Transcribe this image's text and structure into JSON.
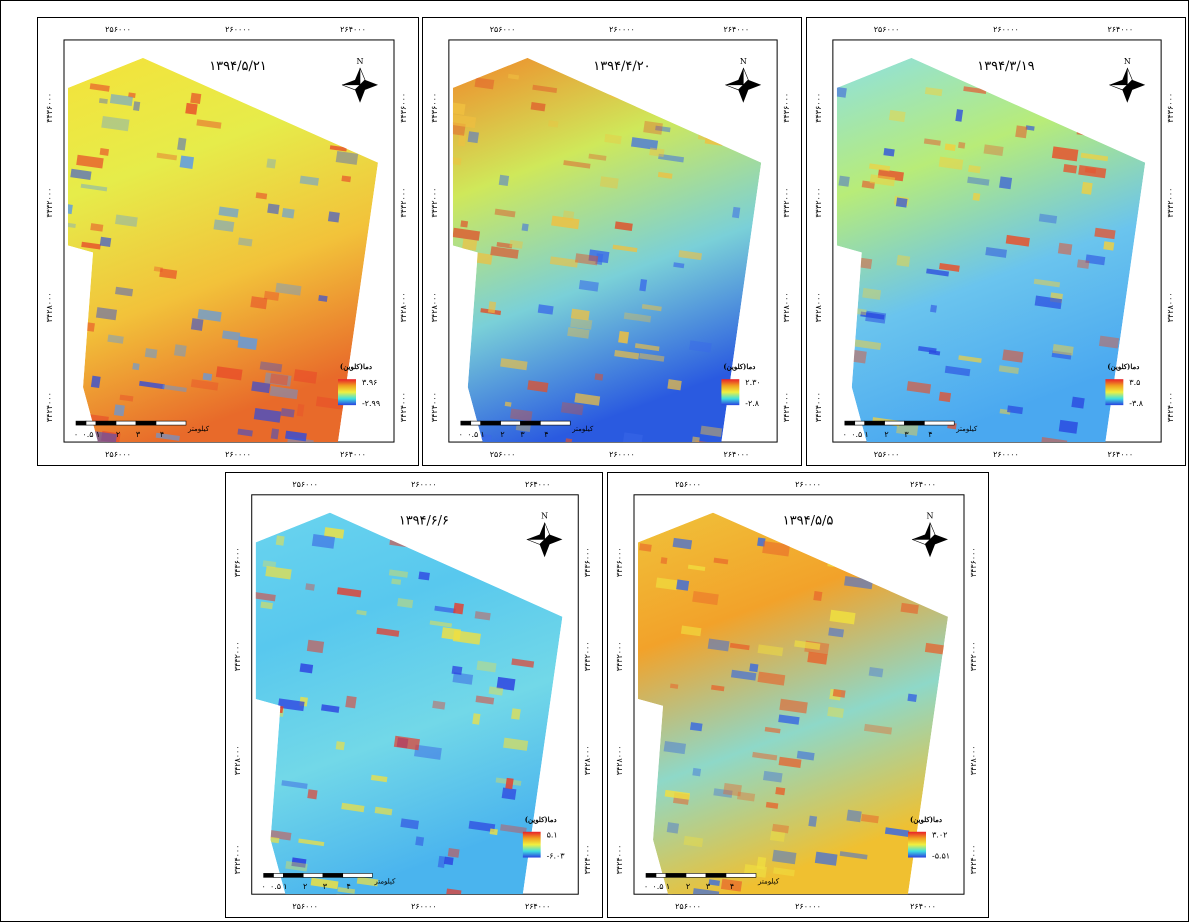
{
  "axes": {
    "x_labels": [
      "۲۵۶۰۰۰",
      "۲۶۰۰۰۰",
      "۲۶۴۰۰۰"
    ],
    "y_labels": [
      "۳۴۳۶۰۰۰",
      "۳۴۳۲۰۰۰",
      "۳۴۲۸۰۰۰",
      "۳۴۲۴۰۰۰"
    ]
  },
  "north": "N",
  "legend_title": "دما(کلوین)",
  "scale_bar": {
    "ticks": [
      "۰",
      "۰.۵",
      "۱",
      "۲",
      "۳",
      "۴"
    ],
    "unit": "کیلومتر"
  },
  "maps": [
    {
      "date": "۱۳۹۴/۵/۲۱",
      "legend_max": "۳.۹۶",
      "legend_min": "-۲.۹۹"
    },
    {
      "date": "۱۳۹۴/۴/۲۰",
      "legend_max": "۲.۳۰",
      "legend_min": "-۲.۸"
    },
    {
      "date": "۱۳۹۴/۳/۱۹",
      "legend_max": "۳.۵",
      "legend_min": "-۳.۸"
    },
    {
      "date": "۱۳۹۴/۶/۶",
      "legend_max": "۵.۱",
      "legend_min": "-۶.۰۳"
    },
    {
      "date": "۱۳۹۴/۵/۵",
      "legend_max": "۳.۰۲",
      "legend_min": "-۵.۵۱"
    }
  ]
}
